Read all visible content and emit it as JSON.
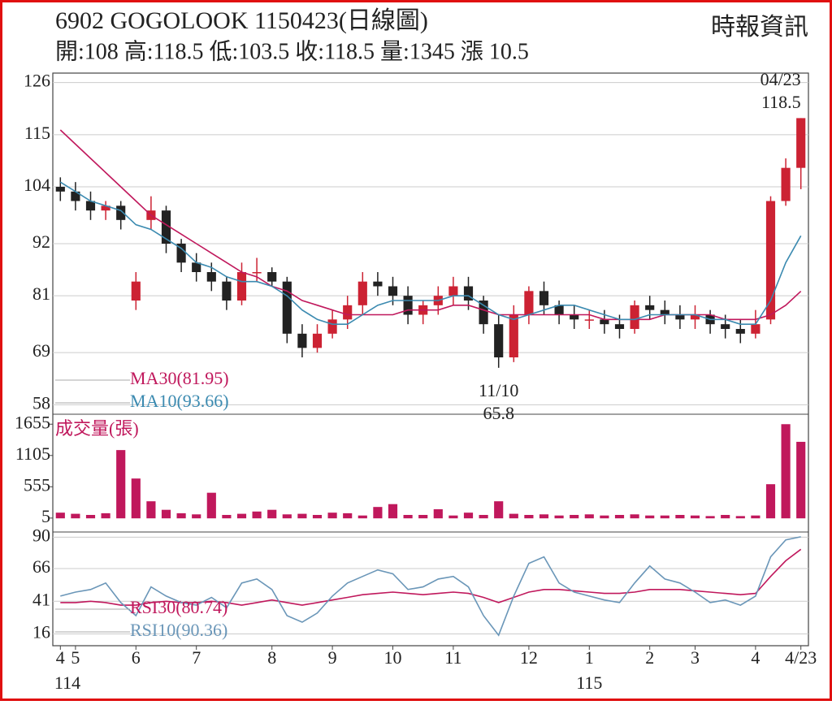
{
  "chart_data": [
    {
      "type": "candlestick",
      "title": "6902  GOGOLOOK 1150423(日線圖)",
      "source": "時報資訊",
      "summary": "開:108 高:118.5 低:103.5 收:118.5 量:1345 漲 10.5",
      "open": [
        104,
        103,
        101,
        99,
        100,
        80,
        97,
        99,
        92,
        88,
        86,
        84,
        80,
        86,
        86,
        84,
        73,
        70,
        73,
        76,
        79,
        84,
        83,
        81,
        77,
        79,
        81,
        83,
        80,
        75,
        68,
        77,
        82,
        79,
        77,
        76,
        76,
        75,
        74,
        79,
        78,
        77,
        76,
        77,
        75,
        74,
        73,
        76,
        101,
        108
      ],
      "high": [
        106,
        105,
        103,
        101,
        101,
        86,
        102,
        100,
        93,
        90,
        88,
        85,
        88,
        89,
        87,
        85,
        75,
        75,
        78,
        81,
        86,
        86,
        85,
        83,
        80,
        83,
        85,
        85,
        81,
        77,
        79,
        83,
        84,
        80,
        79,
        78,
        78,
        77,
        80,
        81,
        80,
        79,
        79,
        78,
        77,
        76,
        78,
        102,
        110,
        118.5
      ],
      "low": [
        101,
        99,
        97,
        97,
        95,
        78,
        95,
        90,
        86,
        84,
        82,
        78,
        79,
        84,
        83,
        71,
        68,
        69,
        72,
        74,
        77,
        81,
        79,
        75,
        75,
        77,
        79,
        78,
        73,
        65.8,
        67,
        75,
        77,
        75,
        74,
        74,
        73,
        72,
        73,
        76,
        75,
        74,
        74,
        73,
        72,
        71,
        72,
        75,
        100,
        103.5
      ],
      "close": [
        103,
        101,
        99,
        100,
        97,
        84,
        99,
        92,
        88,
        86,
        84,
        80,
        86,
        86,
        84,
        73,
        70,
        73,
        76,
        79,
        84,
        83,
        81,
        77,
        79,
        81,
        83,
        80,
        75,
        68,
        77,
        82,
        79,
        77,
        76,
        76,
        75,
        74,
        79,
        78,
        77,
        76,
        77,
        75,
        74,
        73,
        75,
        101,
        108,
        118.5
      ],
      "up_color": "#cc2233",
      "down_color": "#222222",
      "series": [
        {
          "name": "MA30(81.95)",
          "color": "#c0185c",
          "values": [
            116,
            113,
            110,
            107,
            104,
            101,
            98,
            96,
            94,
            92,
            90,
            88,
            86,
            85,
            83,
            82,
            80,
            79,
            78,
            77,
            77,
            77,
            77,
            78,
            78,
            78,
            79,
            79,
            78,
            77,
            77,
            77,
            77,
            77,
            77,
            77,
            76,
            76,
            76,
            76,
            77,
            77,
            77,
            77,
            76,
            76,
            76,
            77,
            79,
            81.95
          ]
        },
        {
          "name": "MA10(93.66)",
          "color": "#3b8ab0",
          "values": [
            105,
            103,
            101,
            100,
            99,
            96,
            95,
            93,
            91,
            88,
            87,
            85,
            84,
            84,
            83,
            81,
            78,
            76,
            75,
            75,
            77,
            79,
            80,
            80,
            80,
            80,
            81,
            81,
            79,
            77,
            76,
            77,
            78,
            79,
            79,
            78,
            77,
            76,
            76,
            77,
            77,
            77,
            77,
            76,
            76,
            75,
            75,
            80,
            88,
            93.66
          ]
        }
      ],
      "annotations": {
        "high": "04/23",
        "low": "11/10"
      },
      "ylim": [
        56,
        128
      ],
      "yticks": [
        58,
        69,
        81,
        92,
        104,
        115,
        126
      ],
      "grid": true
    },
    {
      "type": "bar",
      "title": "成交量(張)",
      "color": "#c0185c",
      "values": [
        100,
        80,
        60,
        90,
        1200,
        700,
        300,
        150,
        90,
        70,
        450,
        60,
        80,
        120,
        150,
        70,
        80,
        60,
        100,
        90,
        50,
        200,
        250,
        60,
        60,
        160,
        50,
        100,
        60,
        300,
        80,
        60,
        70,
        50,
        60,
        70,
        50,
        60,
        70,
        50,
        50,
        60,
        50,
        40,
        60,
        40,
        50,
        600,
        1655,
        1345
      ],
      "ylim": [
        -240,
        1830
      ],
      "yticks": [
        5,
        555,
        1105,
        1655
      ],
      "grid": false
    },
    {
      "type": "line",
      "series": [
        {
          "name": "RSI30(80.74)",
          "color": "#c0185c",
          "values": [
            40,
            40,
            41,
            40,
            38,
            38,
            40,
            41,
            40,
            40,
            41,
            40,
            38,
            40,
            42,
            40,
            38,
            40,
            42,
            44,
            46,
            47,
            48,
            47,
            46,
            47,
            48,
            47,
            44,
            40,
            44,
            48,
            50,
            50,
            49,
            48,
            47,
            47,
            48,
            50,
            50,
            50,
            49,
            48,
            47,
            46,
            47,
            60,
            72,
            80.74
          ]
        },
        {
          "name": "RSI10(90.36)",
          "color": "#6a96b8",
          "values": [
            45,
            48,
            50,
            55,
            40,
            30,
            52,
            45,
            40,
            38,
            44,
            36,
            55,
            58,
            50,
            30,
            25,
            32,
            45,
            55,
            60,
            65,
            62,
            50,
            52,
            58,
            60,
            52,
            30,
            15,
            45,
            70,
            75,
            55,
            48,
            45,
            42,
            40,
            55,
            68,
            58,
            55,
            48,
            40,
            42,
            38,
            45,
            75,
            88,
            90.36
          ]
        }
      ],
      "ylim": [
        7,
        94
      ],
      "yticks": [
        16,
        41,
        66,
        90
      ],
      "grid": true,
      "xticks": [
        {
          "value": 0,
          "label": "4"
        },
        {
          "value": 1,
          "label": "5"
        },
        {
          "value": 5,
          "label": "6"
        },
        {
          "value": 9,
          "label": "7"
        },
        {
          "value": 14,
          "label": "8"
        },
        {
          "value": 18,
          "label": "9"
        },
        {
          "value": 22,
          "label": "10"
        },
        {
          "value": 26,
          "label": "11"
        },
        {
          "value": 31,
          "label": "12"
        },
        {
          "value": 35,
          "label": "1"
        },
        {
          "value": 39,
          "label": "2"
        },
        {
          "value": 42,
          "label": "3"
        },
        {
          "value": 46,
          "label": "4"
        },
        {
          "value": 49,
          "label": "4/23"
        }
      ],
      "year_ticks": [
        {
          "value": 0,
          "label": "114"
        },
        {
          "value": 35,
          "label": "115"
        }
      ]
    }
  ]
}
